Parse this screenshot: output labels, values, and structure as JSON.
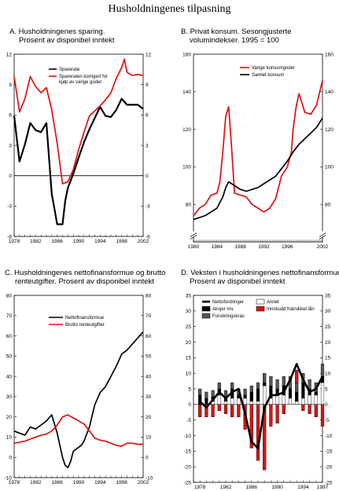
{
  "title": "Husholdningenes tilpasning",
  "colors": {
    "red": "#e01010",
    "black": "#000000",
    "darkgray": "#555555",
    "white": "#ffffff"
  },
  "panels": {
    "A": {
      "title_line1": "A.  Husholdningenes sparing.",
      "title_line2": "Prosent av disponibel inntekt"
    },
    "B": {
      "title_line1": "B.  Privat konsum. Sesongjusterte",
      "title_line2": "volumindekser. 1995 = 100"
    },
    "C": {
      "title_line1": "C.  Husholdningenes nettofinansformue og brutto",
      "title_line2": "renteutgifter. Prosent av disponibel inntekt"
    },
    "D": {
      "title_line1": "D.  Veksten i husholdningenes nettofinansformue.",
      "title_line2": "Prosent av disponibel inntekt"
    }
  },
  "chart_data": [
    {
      "id": "A",
      "type": "line",
      "ylim": [
        -6,
        12
      ],
      "yticks": [
        -6,
        -3,
        0,
        3,
        6,
        9,
        12
      ],
      "xlim": [
        1978,
        2002
      ],
      "xticks": [
        1978,
        1982,
        1986,
        1990,
        1994,
        1998,
        2002
      ],
      "zero_line": true,
      "series": [
        {
          "name": "Sparerate",
          "color": "#000000",
          "x": [
            1978,
            1979,
            1980,
            1981,
            1982,
            1983,
            1984,
            1985,
            1985.5,
            1986,
            1986.5,
            1987,
            1987.5,
            1988,
            1989,
            1990,
            1991,
            1992,
            1993,
            1994,
            1995,
            1996,
            1997,
            1998,
            1999,
            2000,
            2001,
            2002
          ],
          "y": [
            5.9,
            1.4,
            3.1,
            5.2,
            4.5,
            4.3,
            5.2,
            -1.8,
            -3.3,
            -4.8,
            -4.8,
            -4.8,
            -2.5,
            -1.2,
            0.2,
            1.8,
            3.3,
            4.6,
            5.7,
            6.8,
            5.9,
            5.8,
            6.5,
            7.6,
            7.0,
            7.0,
            7.0,
            6.6
          ]
        },
        {
          "name": "Spareraten korrigert for kjøp av varige goder",
          "color": "#e01010",
          "x": [
            1978,
            1979,
            1980,
            1981,
            1982,
            1983,
            1984,
            1985,
            1986,
            1987,
            1988,
            1989,
            1990,
            1991,
            1992,
            1993,
            1994,
            1995,
            1996,
            1997,
            1998,
            1998.5,
            1999,
            2000,
            2001,
            2002
          ],
          "y": [
            9.8,
            6.3,
            7.6,
            9.8,
            8.8,
            8.2,
            8.7,
            6.5,
            3.2,
            -0.8,
            -0.6,
            0.6,
            2.6,
            4.3,
            5.9,
            6.4,
            6.9,
            7.5,
            8.2,
            9.6,
            10.7,
            11.5,
            10.2,
            9.9,
            10.0,
            9.9
          ]
        }
      ]
    },
    {
      "id": "B",
      "type": "line",
      "ylim": [
        60,
        160
      ],
      "yticks": [
        80,
        100,
        120,
        140,
        160
      ],
      "axis_break": true,
      "xlim": [
        1980,
        2002
      ],
      "xticks": [
        1980,
        1984,
        1988,
        1992,
        1996,
        2002
      ],
      "series": [
        {
          "name": "Varige konsumgoder",
          "color": "#e01010",
          "x": [
            1980,
            1981,
            1982,
            1983,
            1984,
            1984.5,
            1985,
            1985.5,
            1986,
            1986.5,
            1987,
            1988,
            1989,
            1990,
            1991,
            1992,
            1993,
            1994,
            1995,
            1996,
            1996.7,
            1997,
            1997.5,
            1998,
            1999,
            2000,
            2001,
            2002
          ],
          "y": [
            74,
            78,
            80,
            85,
            86,
            92,
            108,
            127,
            132,
            110,
            86,
            85,
            84,
            80,
            78,
            76,
            78,
            83,
            95,
            100,
            108,
            120,
            132,
            139,
            129,
            128,
            133,
            146
          ]
        },
        {
          "name": "Samlet konsum",
          "color": "#000000",
          "x": [
            1980,
            1981,
            1982,
            1983,
            1984,
            1985,
            1985.5,
            1986,
            1986.5,
            1987,
            1988,
            1989,
            1990,
            1991,
            1992,
            1993,
            1994,
            1995,
            1996,
            1997,
            1998,
            1999,
            2000,
            2001,
            2002
          ],
          "y": [
            72,
            73,
            74,
            76,
            78,
            84,
            89,
            92,
            91,
            90,
            88,
            87,
            88,
            89,
            91,
            93,
            95,
            99,
            103,
            108,
            112,
            115,
            118,
            121,
            126
          ]
        }
      ]
    },
    {
      "id": "C",
      "type": "line",
      "ylim": [
        -10,
        80
      ],
      "yticks": [
        -10,
        0,
        10,
        20,
        30,
        40,
        50,
        60,
        70,
        80
      ],
      "xlim": [
        1978,
        2002
      ],
      "xticks": [
        1978,
        1982,
        1986,
        1990,
        1994,
        1998,
        2002
      ],
      "series": [
        {
          "name": "Nettofinansformue",
          "color": "#000000",
          "x": [
            1978,
            1979,
            1980,
            1981,
            1982,
            1983,
            1984,
            1985,
            1986,
            1986.5,
            1987,
            1987.5,
            1988,
            1988.5,
            1989,
            1990,
            1990.5,
            1991,
            1992,
            1993,
            1994,
            1995,
            1996,
            1997,
            1998,
            1999,
            2000,
            2001,
            2002
          ],
          "y": [
            13,
            12,
            11,
            15,
            14,
            16,
            18,
            21,
            12,
            6,
            0,
            -4,
            -5,
            -2,
            3,
            5,
            6,
            8,
            15,
            26,
            32,
            35,
            40,
            45,
            51,
            53,
            56,
            59,
            62
          ]
        },
        {
          "name": "Brutto renteutgifter",
          "color": "#e01010",
          "x": [
            1978,
            1979,
            1980,
            1981,
            1982,
            1983,
            1984,
            1985,
            1986,
            1987,
            1988,
            1989,
            1990,
            1991,
            1992,
            1993,
            1994,
            1995,
            1996,
            1997,
            1998,
            1999,
            2000,
            2001,
            2002
          ],
          "y": [
            7,
            7.5,
            8,
            9,
            10,
            11,
            11.5,
            13,
            16,
            20,
            21,
            19.5,
            18,
            16.5,
            13,
            9.5,
            8.5,
            8,
            7,
            6,
            5.5,
            7,
            7,
            6.5,
            6.5
          ]
        }
      ]
    },
    {
      "id": "D",
      "type": "bar",
      "ylim": [
        -25,
        35
      ],
      "yticks": [
        -25,
        -20,
        -15,
        -10,
        -5,
        0,
        5,
        10,
        15,
        20,
        25,
        30,
        35
      ],
      "xlim": [
        1977,
        1997
      ],
      "xticks": [
        1978,
        1982,
        1986,
        1990,
        1994,
        1997
      ],
      "categories": [
        1978,
        1979,
        1980,
        1981,
        1982,
        1983,
        1984,
        1985,
        1986,
        1987,
        1988,
        1989,
        1990,
        1991,
        1992,
        1993,
        1994,
        1995,
        1996,
        1997
      ],
      "series": [
        {
          "name": "Nettofordringer",
          "kind": "line",
          "color": "#000000",
          "values": [
            1,
            -1,
            1.5,
            4,
            2,
            4,
            5,
            -3,
            -12,
            -14,
            -1,
            3,
            3,
            4,
            8,
            13,
            8,
            4,
            5,
            9
          ]
        },
        {
          "name": "Annet",
          "kind": "bar",
          "color": "#ffffff",
          "values": [
            0,
            0,
            1,
            3,
            1,
            2,
            2,
            2,
            1,
            1,
            6,
            2,
            3,
            3,
            2,
            1,
            2,
            3,
            3,
            7
          ]
        },
        {
          "name": "Aksjer mv.",
          "kind": "bar",
          "color": "#000000",
          "values": [
            3,
            2,
            1.5,
            2,
            1.5,
            3,
            1,
            1,
            3,
            4,
            1,
            4,
            2,
            3,
            3,
            3,
            5,
            2,
            1,
            2
          ]
        },
        {
          "name": "Forsikringskrav",
          "kind": "bar",
          "color": "#555555",
          "values": [
            2,
            2,
            2,
            2,
            2,
            2,
            2,
            2,
            2,
            2,
            3,
            3,
            3,
            3,
            3,
            3,
            3,
            3,
            3,
            4
          ]
        },
        {
          "name": "Innskudd fratrukket lån",
          "kind": "bar",
          "color": "#e01010",
          "values": [
            -4,
            -4,
            -4,
            -2,
            -3,
            -4,
            -4,
            -8,
            -14,
            -18,
            -21,
            -7,
            -6,
            -3,
            1,
            4,
            -2,
            -3,
            -4,
            -7
          ]
        }
      ]
    }
  ]
}
